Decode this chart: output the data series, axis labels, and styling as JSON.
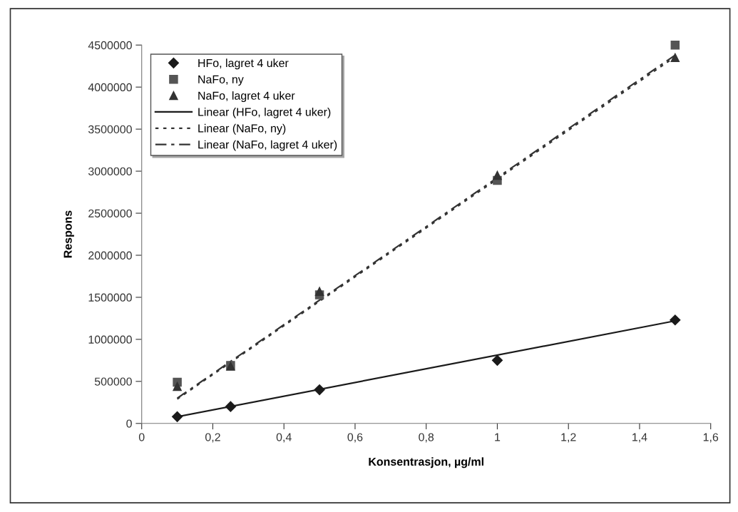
{
  "chart_data": {
    "type": "scatter",
    "xlabel": "Konsentrasjon, µg/ml",
    "ylabel": "Respons",
    "xlim": [
      0,
      1.6
    ],
    "ylim": [
      0,
      4500000
    ],
    "xticks": [
      0,
      {
        "value": 0.2,
        "label": "0,2"
      },
      {
        "value": 0.4,
        "label": "0,4"
      },
      {
        "value": 0.6,
        "label": "0,6"
      },
      {
        "value": 0.8,
        "label": "0,8"
      },
      1,
      {
        "value": 1.2,
        "label": "1,2"
      },
      {
        "value": 1.4,
        "label": "1,4"
      },
      {
        "value": 1.6,
        "label": "1,6"
      }
    ],
    "yticks": [
      0,
      500000,
      1000000,
      1500000,
      2000000,
      2500000,
      3000000,
      3500000,
      4000000,
      4500000
    ],
    "grid": false,
    "legend": "top left",
    "series": [
      {
        "name": "HFo, lagret 4 uker",
        "marker": "diamond",
        "color": "#1a1a1a",
        "x": [
          0.1,
          0.25,
          0.5,
          1,
          1.5
        ],
        "values": [
          80000,
          200000,
          400000,
          750000,
          1230000
        ]
      },
      {
        "name": "NaFo, ny",
        "marker": "square",
        "color": "#555555",
        "x": [
          0.1,
          0.25,
          0.5,
          1,
          1.5
        ],
        "values": [
          490000,
          690000,
          1530000,
          2890000,
          4500000
        ]
      },
      {
        "name": "NaFo, lagret 4 uker",
        "marker": "triangle",
        "color": "#333333",
        "x": [
          0.1,
          0.25,
          0.5,
          1,
          1.5
        ],
        "values": [
          440000,
          680000,
          1570000,
          2950000,
          4350000
        ]
      },
      {
        "name": "Linear (HFo, lagret 4 uker)",
        "type": "line",
        "line_style": "solid",
        "marker": "none",
        "color": "#1a1a1a",
        "x": [
          0.1,
          1.5
        ],
        "values": [
          80000,
          1220000
        ]
      },
      {
        "name": "Linear (NaFo, ny)",
        "type": "line",
        "line_style": "dotted",
        "marker": "none",
        "color": "#333333",
        "x": [
          0.1,
          1.5
        ],
        "values": [
          290000,
          4360000
        ]
      },
      {
        "name": "Linear (NaFo, lagret 4 uker)",
        "type": "line",
        "line_style": "dashed",
        "marker": "none",
        "color": "#333333",
        "x": [
          0.1,
          1.5
        ],
        "values": [
          300000,
          4380000
        ]
      }
    ]
  }
}
